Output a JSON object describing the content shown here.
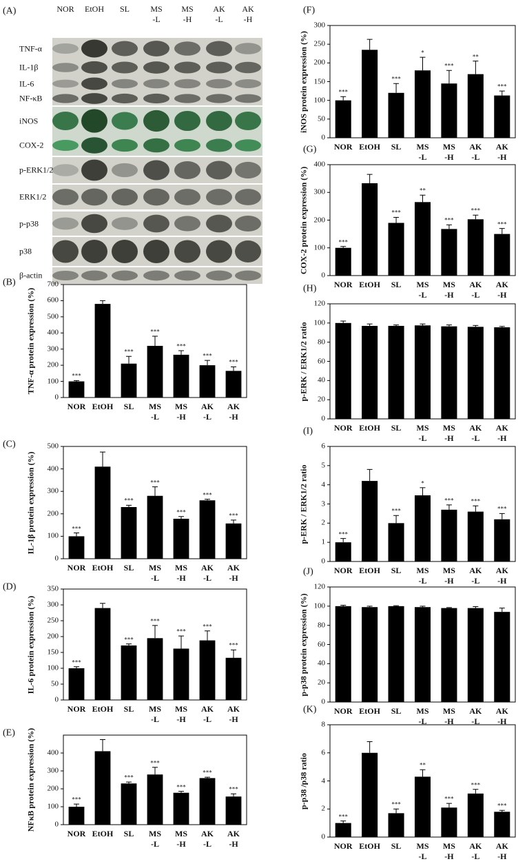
{
  "blot": {
    "panel_label": "(A)",
    "lanes": [
      "NOR",
      "EtOH",
      "SL",
      "MS\n-L",
      "MS\n-H",
      "AK\n-L",
      "AK\n-H"
    ],
    "rows": [
      "TNF-α",
      "IL-1β",
      "IL-6",
      "NF-κB",
      "iNOS",
      "COX-2",
      "p-ERK1/2",
      "ERK1/2",
      "p-p38",
      "p38",
      "β-actin"
    ]
  },
  "chart_data": [
    {
      "type": "bar",
      "panel_label": "(B)",
      "y_label": "TNF-α protein expression (%)",
      "color": "#000000",
      "categories": [
        "NOR",
        "EtOH",
        "SL",
        "MS\n-L",
        "MS\n-H",
        "AK\n-L",
        "AK\n-H"
      ],
      "values": [
        100,
        580,
        210,
        320,
        265,
        200,
        165
      ],
      "errors": [
        5,
        20,
        45,
        60,
        25,
        30,
        25
      ],
      "annotations": [
        "***",
        null,
        "***",
        "***",
        "***",
        "***",
        "***"
      ],
      "ylim": [
        0,
        700
      ],
      "yticks": [
        0,
        100,
        200,
        300,
        400,
        500,
        600,
        700
      ]
    },
    {
      "type": "bar",
      "panel_label": "(C)",
      "y_label": "IL-1β protein expression (%)",
      "color": "#000000",
      "categories": [
        "NOR",
        "EtOH",
        "SL",
        "MS\n-L",
        "MS\n-H",
        "AK\n-L",
        "AK\n-H"
      ],
      "values": [
        100,
        410,
        230,
        280,
        178,
        260,
        157
      ],
      "errors": [
        15,
        65,
        8,
        40,
        10,
        5,
        15
      ],
      "annotations": [
        "***",
        null,
        "***",
        "***",
        "***",
        "***",
        "***"
      ],
      "ylim": [
        0,
        500
      ],
      "yticks": [
        0,
        100,
        200,
        300,
        400,
        500
      ]
    },
    {
      "type": "bar",
      "panel_label": "(D)",
      "y_label": "IL-6 protein expression (%)",
      "color": "#000000",
      "categories": [
        "NOR",
        "EtOH",
        "SL",
        "MS\n-L",
        "MS\n-H",
        "AK\n-L",
        "AK\n-H"
      ],
      "values": [
        100,
        290,
        172,
        195,
        162,
        188,
        133
      ],
      "errors": [
        5,
        15,
        5,
        40,
        40,
        30,
        25
      ],
      "annotations": [
        "***",
        null,
        "***",
        "***",
        "***",
        "***",
        "***"
      ],
      "ylim": [
        0,
        350
      ],
      "yticks": [
        0,
        50,
        100,
        150,
        200,
        250,
        300,
        350
      ]
    },
    {
      "type": "bar",
      "panel_label": "(E)",
      "y_label": "NFκB protein expression (%)",
      "color": "#000000",
      "categories": [
        "NOR",
        "EtOH",
        "SL",
        "MS\n-L",
        "MS\n-H",
        "AK\n-L",
        "AK\n-H"
      ],
      "values": [
        100,
        410,
        230,
        280,
        178,
        260,
        157
      ],
      "errors": [
        15,
        65,
        8,
        40,
        8,
        5,
        15
      ],
      "annotations": [
        "***",
        null,
        "***",
        "***",
        "***",
        "***",
        "***"
      ],
      "ylim": [
        0,
        500
      ],
      "yticks": [
        0,
        100,
        200,
        300,
        400
      ]
    },
    {
      "type": "bar",
      "panel_label": "(F)",
      "y_label": "iNOS protein expression (%)",
      "color": "#000000",
      "categories": [
        "NOR",
        "EtOH",
        "SL",
        "MS\n-L",
        "MS\n-H",
        "AK\n-L",
        "AK\n-H"
      ],
      "values": [
        100,
        235,
        120,
        180,
        145,
        170,
        113
      ],
      "errors": [
        10,
        28,
        25,
        35,
        35,
        35,
        12
      ],
      "annotations": [
        "***",
        null,
        "***",
        "*",
        "***",
        "**",
        "***"
      ],
      "ylim": [
        0,
        300
      ],
      "yticks": [
        0,
        50,
        100,
        150,
        200,
        250,
        300
      ]
    },
    {
      "type": "bar",
      "panel_label": "(G)",
      "y_label": "COX-2 protein expression (%)",
      "color": "#000000",
      "categories": [
        "NOR",
        "EtOH",
        "SL",
        "MS\n-L",
        "MS\n-H",
        "AK\n-L",
        "AK\n-H"
      ],
      "values": [
        100,
        333,
        190,
        265,
        168,
        203,
        150
      ],
      "errors": [
        5,
        32,
        20,
        25,
        15,
        15,
        20
      ],
      "annotations": [
        "***",
        null,
        "***",
        "**",
        "***",
        "***",
        "***"
      ],
      "ylim": [
        0,
        400
      ],
      "yticks": [
        0,
        100,
        200,
        300,
        400
      ]
    },
    {
      "type": "bar",
      "panel_label": "(H)",
      "y_label": "p-ERK / ERK1/2 ratio",
      "color": "#000000",
      "categories": [
        "NOR",
        "EtOH",
        "SL",
        "MS\n-L",
        "MS\n-H",
        "AK\n-L",
        "AK\n-H"
      ],
      "values": [
        100,
        97,
        97,
        97.5,
        96.5,
        96,
        95.5
      ],
      "errors": [
        2,
        2,
        1,
        1.5,
        1.5,
        1.5,
        1
      ],
      "ylim": [
        0,
        120
      ],
      "yticks": [
        0,
        20,
        40,
        60,
        80,
        100,
        120
      ]
    },
    {
      "type": "bar",
      "panel_label": "(I)",
      "y_label": "p-ERK / ERK1/2 ratio",
      "color": "#000000",
      "categories": [
        "NOR",
        "EtOH",
        "SL",
        "MS\n-L",
        "MS\n-H",
        "AK\n-L",
        "AK\n-H"
      ],
      "values": [
        1,
        4.2,
        2.0,
        3.45,
        2.7,
        2.6,
        2.2
      ],
      "errors": [
        0.2,
        0.6,
        0.4,
        0.4,
        0.25,
        0.3,
        0.3
      ],
      "annotations": [
        "***",
        null,
        "***",
        "*",
        "***",
        "***",
        "***"
      ],
      "ylim": [
        0,
        6
      ],
      "yticks": [
        0,
        1,
        2,
        3,
        4,
        5,
        6
      ]
    },
    {
      "type": "bar",
      "panel_label": "(J)",
      "y_label": "p-p38 protein expression (%)",
      "color": "#000000",
      "categories": [
        "NOR",
        "EtOH",
        "SL",
        "MS\n-L",
        "MS\n-H",
        "AK\n-L",
        "AK\n-H"
      ],
      "values": [
        100,
        99,
        100,
        99,
        98,
        98,
        94
      ],
      "errors": [
        1,
        1,
        0.5,
        1,
        0.5,
        1.5,
        4
      ],
      "ylim": [
        0,
        120
      ],
      "yticks": [
        0,
        20,
        40,
        60,
        80,
        100,
        120
      ]
    },
    {
      "type": "bar",
      "panel_label": "(K)",
      "y_label": "p-p38 /p38 ratio",
      "color": "#000000",
      "categories": [
        "NOR",
        "EtOH",
        "SL",
        "MS\n-L",
        "MS\n-H",
        "AK\n-L",
        "AK\n-H"
      ],
      "values": [
        1,
        6.0,
        1.7,
        4.3,
        2.1,
        3.1,
        1.8
      ],
      "errors": [
        0.15,
        0.8,
        0.3,
        0.5,
        0.3,
        0.3,
        0.1
      ],
      "annotations": [
        "***",
        null,
        "***",
        "**",
        "***",
        "***",
        "***"
      ],
      "ylim": [
        0,
        8
      ],
      "yticks": [
        0,
        2,
        4,
        6,
        8
      ]
    }
  ]
}
